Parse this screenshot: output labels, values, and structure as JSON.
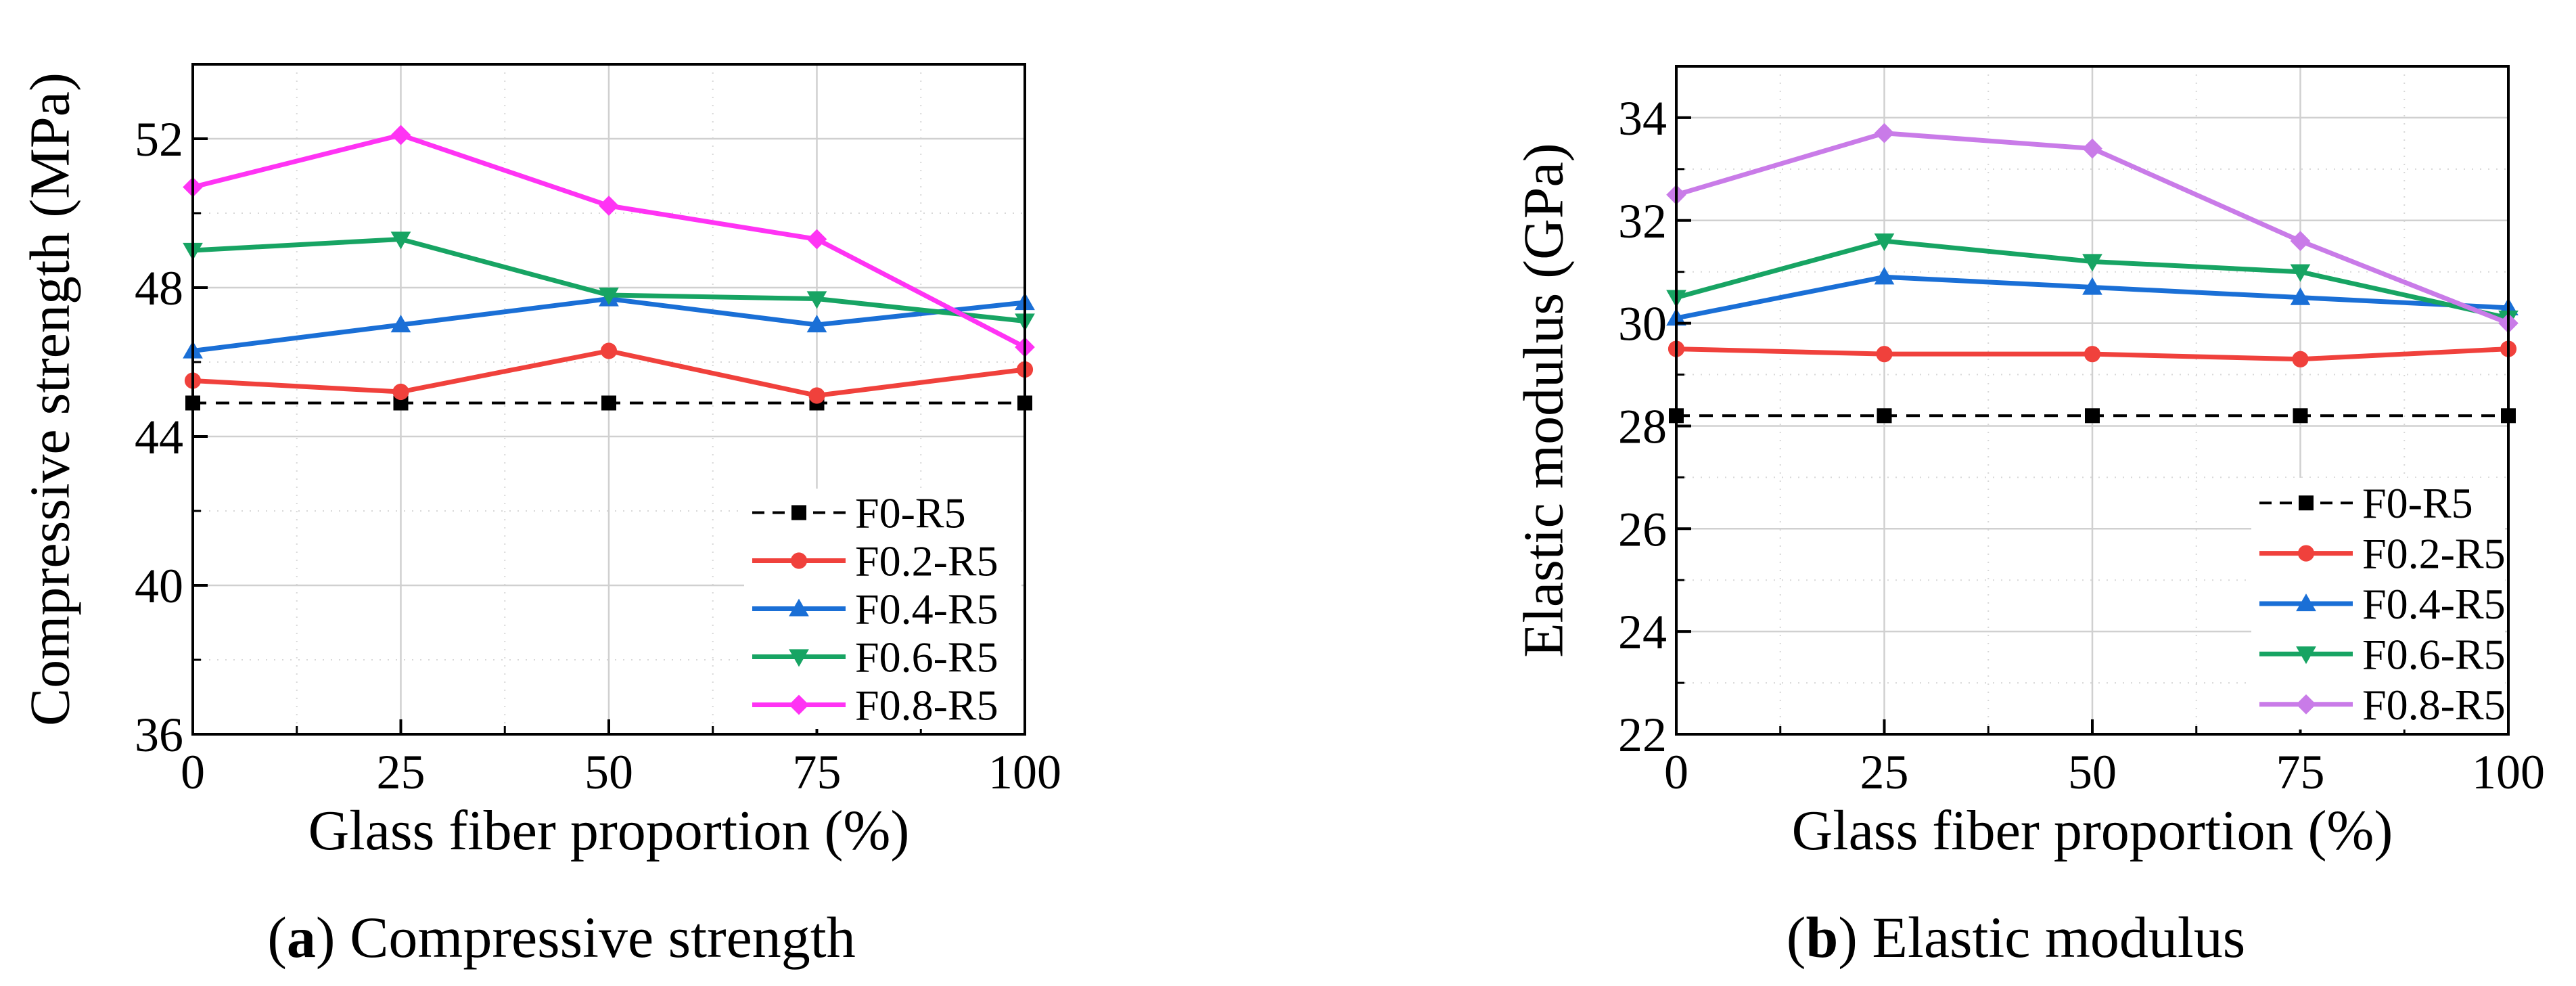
{
  "chart_data": [
    {
      "type": "line",
      "title": "",
      "caption_letter": "a",
      "caption_text": "Compressive strength",
      "xlabel": "Glass fiber proportion (%)",
      "ylabel": "Compressive strength (MPa)",
      "xlim": [
        0,
        100
      ],
      "ylim": [
        36,
        54
      ],
      "xticks": [
        0,
        25,
        50,
        75,
        100
      ],
      "yticks": [
        36,
        40,
        44,
        48,
        52
      ],
      "grid": true,
      "legend_position": "bottom-right",
      "x": [
        0,
        25,
        50,
        75,
        100
      ],
      "series": [
        {
          "name": "F0-R5",
          "values": [
            44.9,
            44.9,
            44.9,
            44.9,
            44.9
          ],
          "color": "#000000",
          "marker": "square",
          "dashed": true
        },
        {
          "name": "F0.2-R5",
          "values": [
            45.5,
            45.2,
            46.3,
            45.1,
            45.8
          ],
          "color": "#f0413c",
          "marker": "circle",
          "dashed": false
        },
        {
          "name": "F0.4-R5",
          "values": [
            46.3,
            47.0,
            47.7,
            47.0,
            47.6
          ],
          "color": "#1a6fd6",
          "marker": "triangle-up",
          "dashed": false
        },
        {
          "name": "F0.6-R5",
          "values": [
            49.0,
            49.3,
            47.8,
            47.7,
            47.1
          ],
          "color": "#17a463",
          "marker": "triangle-down",
          "dashed": false
        },
        {
          "name": "F0.8-R5",
          "values": [
            50.7,
            52.1,
            50.2,
            49.3,
            46.4
          ],
          "color": "#ff33f4",
          "marker": "diamond",
          "dashed": false
        }
      ]
    },
    {
      "type": "line",
      "title": "",
      "caption_letter": "b",
      "caption_text": "Elastic modulus",
      "xlabel": "Glass fiber proportion (%)",
      "ylabel": "Elastic modulus (GPa)",
      "xlim": [
        0,
        100
      ],
      "ylim": [
        22,
        35
      ],
      "xticks": [
        0,
        25,
        50,
        75,
        100
      ],
      "yticks": [
        22,
        24,
        26,
        28,
        30,
        32,
        34
      ],
      "grid": true,
      "legend_position": "bottom-right",
      "x": [
        0,
        25,
        50,
        75,
        100
      ],
      "series": [
        {
          "name": "F0-R5",
          "values": [
            28.2,
            28.2,
            28.2,
            28.2,
            28.2
          ],
          "color": "#000000",
          "marker": "square",
          "dashed": true
        },
        {
          "name": "F0.2-R5",
          "values": [
            29.5,
            29.4,
            29.4,
            29.3,
            29.5
          ],
          "color": "#f0413c",
          "marker": "circle",
          "dashed": false
        },
        {
          "name": "F0.4-R5",
          "values": [
            30.1,
            30.9,
            30.7,
            30.5,
            30.3
          ],
          "color": "#1a6fd6",
          "marker": "triangle-up",
          "dashed": false
        },
        {
          "name": "F0.6-R5",
          "values": [
            30.5,
            31.6,
            31.2,
            31.0,
            30.1
          ],
          "color": "#17a463",
          "marker": "triangle-down",
          "dashed": false
        },
        {
          "name": "F0.8-R5",
          "values": [
            32.5,
            33.7,
            33.4,
            31.6,
            30.0
          ],
          "color": "#c97be8",
          "marker": "diamond",
          "dashed": false
        }
      ]
    }
  ]
}
